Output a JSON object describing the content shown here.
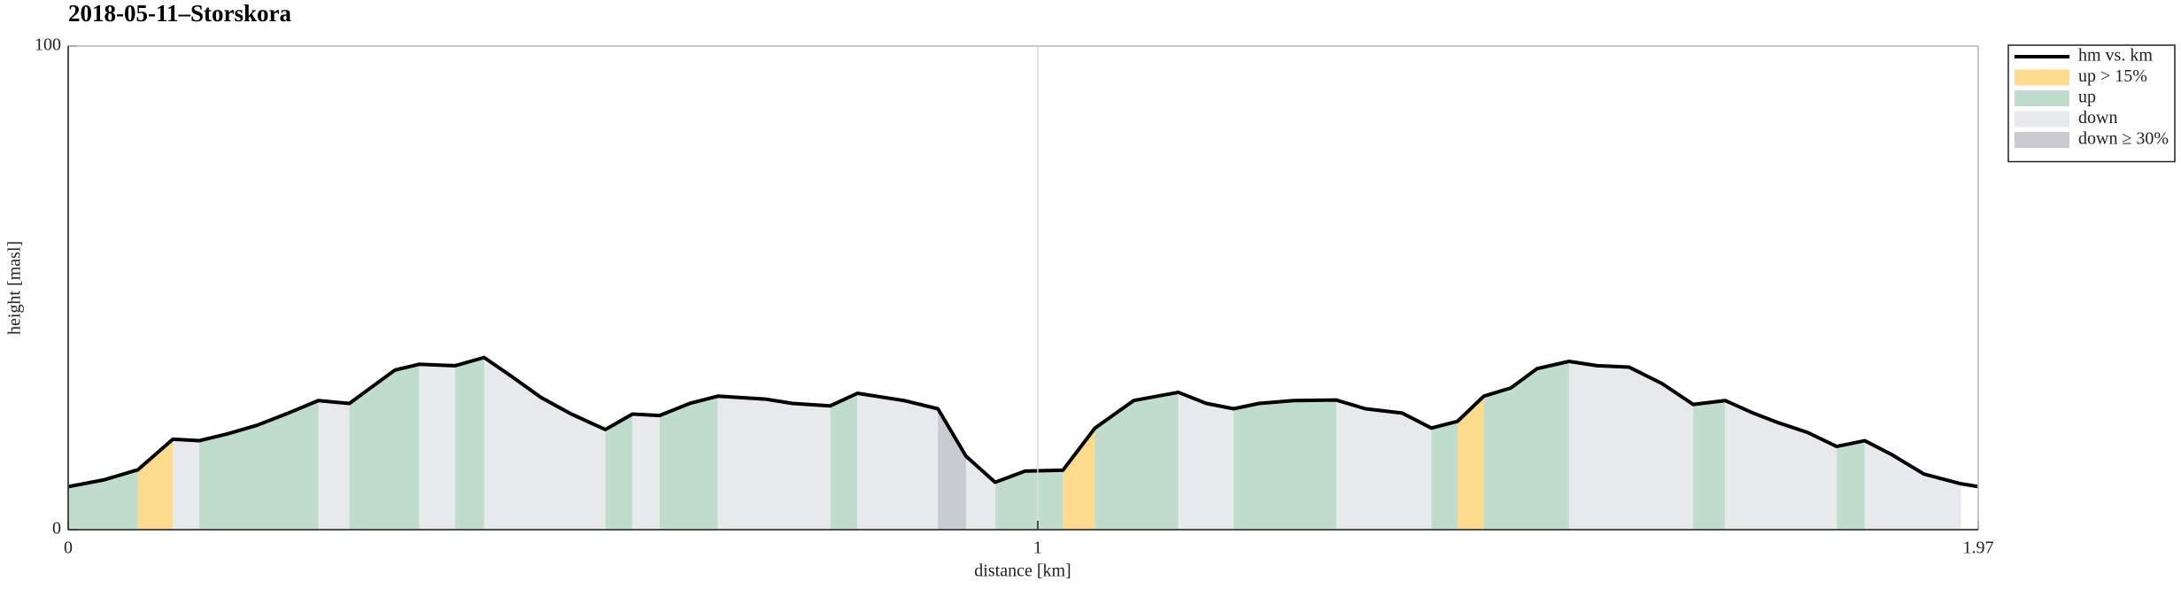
{
  "chart_data": {
    "type": "area-profile",
    "title": "2018-05-11–Storskora",
    "x_label": "distance [km]",
    "y_label": "height [masl]",
    "xlim": [
      0,
      1.97
    ],
    "ylim": [
      0,
      100
    ],
    "xticks": [
      0,
      1,
      1.97
    ],
    "yticks": [
      0,
      100
    ],
    "grid": true,
    "legend": "outside-top-right",
    "series": [
      {
        "name": "up > 15%",
        "kind": "area",
        "color": "#fddb8e",
        "x": [
          0.072,
          0.108,
          null,
          1.026,
          1.059,
          null,
          1.433,
          1.46
        ],
        "values": [
          12.4,
          18.7,
          null,
          12.3,
          21.0,
          null,
          22.4,
          27.6
        ]
      },
      {
        "name": "up",
        "kind": "area",
        "color": "#c0dccd",
        "x": [
          0,
          0.037,
          0.072,
          null,
          0.135,
          0.164,
          0.195,
          0.227,
          0.258,
          null,
          0.29,
          0.337,
          0.362,
          null,
          0.399,
          0.429,
          null,
          0.554,
          0.582,
          null,
          0.61,
          0.641,
          0.67,
          null,
          0.786,
          0.814,
          null,
          0.956,
          0.987,
          1.026,
          null,
          1.059,
          1.099,
          1.145,
          null,
          1.202,
          1.228,
          1.264,
          1.308,
          null,
          1.406,
          1.433,
          null,
          1.46,
          1.488,
          1.515,
          1.548,
          null,
          1.676,
          1.709,
          null,
          1.824,
          1.853
        ],
        "values": [
          8.9,
          10.3,
          12.4,
          null,
          18.4,
          19.8,
          21.6,
          24.1,
          26.7,
          null,
          26.1,
          33.0,
          34.2,
          null,
          33.9,
          35.6,
          null,
          20.7,
          23.9,
          null,
          23.6,
          26.1,
          27.6,
          null,
          25.6,
          28.2,
          null,
          9.8,
          12.1,
          12.3,
          null,
          21.0,
          26.7,
          28.4,
          null,
          25.0,
          26.1,
          26.7,
          26.8,
          null,
          21.0,
          22.4,
          null,
          27.6,
          29.3,
          33.3,
          34.8,
          null,
          25.9,
          26.7,
          null,
          17.2,
          18.4
        ]
      },
      {
        "name": "down",
        "kind": "area",
        "color": "#e8e9ec",
        "x": [
          0.108,
          0.135,
          null,
          0.258,
          0.29,
          null,
          0.362,
          0.399,
          null,
          0.429,
          0.458,
          0.488,
          0.519,
          0.554,
          null,
          0.582,
          0.61,
          null,
          0.67,
          0.719,
          0.747,
          0.786,
          null,
          0.814,
          0.862,
          0.897,
          null,
          0.926,
          0.956,
          null,
          1.145,
          1.174,
          1.202,
          null,
          1.308,
          1.338,
          1.376,
          1.406,
          null,
          1.548,
          1.577,
          1.61,
          1.644,
          1.676,
          null,
          1.709,
          1.738,
          1.764,
          1.794,
          1.824,
          null,
          1.853,
          1.881,
          1.914,
          1.952
        ],
        "values": [
          18.7,
          18.4,
          null,
          26.7,
          26.1,
          null,
          34.2,
          33.9,
          null,
          35.6,
          31.6,
          27.3,
          23.9,
          20.7,
          null,
          23.9,
          23.6,
          null,
          27.6,
          27.0,
          26.1,
          25.6,
          null,
          28.2,
          26.7,
          25.0,
          null,
          15.2,
          9.8,
          null,
          28.4,
          26.1,
          25.0,
          null,
          26.8,
          25.0,
          24.1,
          21.0,
          null,
          34.8,
          33.9,
          33.6,
          30.2,
          25.9,
          null,
          26.7,
          24.1,
          22.1,
          20.1,
          17.2,
          null,
          18.4,
          15.5,
          11.5,
          9.5
        ]
      },
      {
        "name": "down ≥ 30%",
        "kind": "area",
        "color": "#c9cbd1",
        "x": [
          0.897,
          0.926
        ],
        "values": [
          25.0,
          15.2
        ]
      },
      {
        "name": "hm vs. km",
        "kind": "line",
        "color": "#000000",
        "x": [
          0,
          0.037,
          0.072,
          0.108,
          0.135,
          0.164,
          0.195,
          0.227,
          0.258,
          0.29,
          0.337,
          0.362,
          0.399,
          0.429,
          0.458,
          0.488,
          0.519,
          0.554,
          0.582,
          0.61,
          0.641,
          0.67,
          0.719,
          0.747,
          0.786,
          0.814,
          0.862,
          0.897,
          0.926,
          0.956,
          0.987,
          1.026,
          1.059,
          1.099,
          1.145,
          1.174,
          1.202,
          1.228,
          1.264,
          1.308,
          1.338,
          1.376,
          1.406,
          1.433,
          1.46,
          1.488,
          1.515,
          1.548,
          1.577,
          1.61,
          1.644,
          1.676,
          1.709,
          1.738,
          1.764,
          1.794,
          1.824,
          1.853,
          1.881,
          1.914,
          1.952,
          1.97
        ],
        "values": [
          8.9,
          10.3,
          12.4,
          18.7,
          18.4,
          19.8,
          21.6,
          24.1,
          26.7,
          26.1,
          33.0,
          34.2,
          33.9,
          35.6,
          31.6,
          27.3,
          23.9,
          20.7,
          23.9,
          23.6,
          26.1,
          27.6,
          27.0,
          26.1,
          25.6,
          28.2,
          26.7,
          25.0,
          15.2,
          9.8,
          12.1,
          12.3,
          21.0,
          26.7,
          28.4,
          26.1,
          25.0,
          26.1,
          26.7,
          26.8,
          25.0,
          24.1,
          21.0,
          22.4,
          27.6,
          29.3,
          33.3,
          34.8,
          33.9,
          33.6,
          30.2,
          25.9,
          26.7,
          24.1,
          22.1,
          20.1,
          17.2,
          18.4,
          15.5,
          11.5,
          9.5,
          8.9
        ]
      }
    ],
    "legend_order": [
      "hm vs. km",
      "up > 15%",
      "up",
      "down",
      "down ≥ 30%"
    ]
  }
}
